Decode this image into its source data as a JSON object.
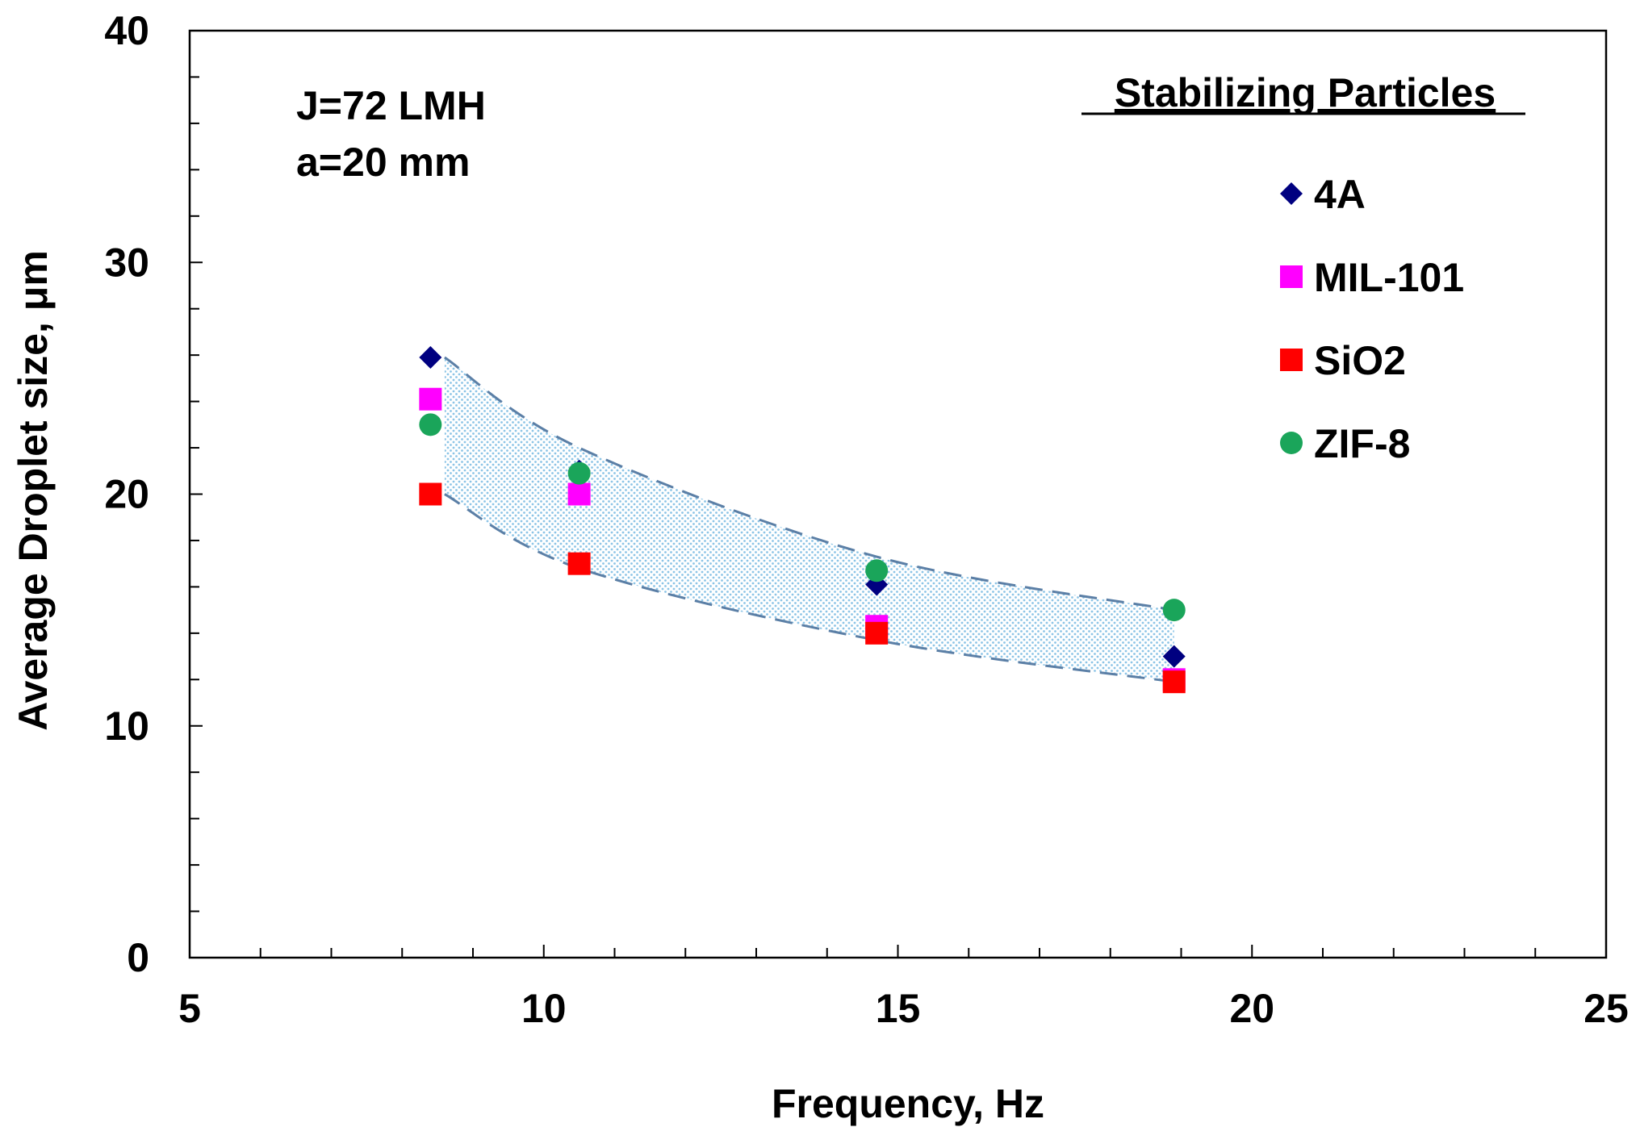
{
  "chart_data": {
    "type": "scatter",
    "title": "",
    "xlabel": "Frequency, Hz",
    "ylabel": "Average Droplet size, μm",
    "xlim": [
      5,
      25
    ],
    "ylim": [
      0,
      40
    ],
    "x_ticks": [
      "5",
      "10",
      "15",
      "20",
      "25"
    ],
    "y_ticks": [
      "0",
      "10",
      "20",
      "30",
      "40"
    ],
    "annotations": [
      "J=72 LMH",
      "a=20 mm"
    ],
    "legend_title": "Stabilizing Particles",
    "legend_position": "top-right",
    "series": [
      {
        "name": "4A",
        "marker": "diamond",
        "color": "#000080",
        "points": [
          [
            8.4,
            25.9
          ],
          [
            10.5,
            21.0
          ],
          [
            14.7,
            16.1
          ],
          [
            18.9,
            13.0
          ]
        ]
      },
      {
        "name": "MIL-101",
        "marker": "square",
        "color": "#ff00ff",
        "points": [
          [
            8.4,
            24.1
          ],
          [
            10.5,
            20.0
          ],
          [
            14.7,
            14.3
          ],
          [
            18.9,
            12.0
          ]
        ]
      },
      {
        "name": "SiO2",
        "marker": "square",
        "color": "#ff0000",
        "points": [
          [
            8.4,
            20.0
          ],
          [
            10.5,
            17.0
          ],
          [
            14.7,
            14.0
          ],
          [
            18.9,
            11.9
          ]
        ]
      },
      {
        "name": "ZIF-8",
        "marker": "circle",
        "color": "#1aa55a",
        "points": [
          [
            8.4,
            23.0
          ],
          [
            10.5,
            20.9
          ],
          [
            14.7,
            16.7
          ],
          [
            18.9,
            15.0
          ]
        ]
      }
    ],
    "band": {
      "upper": [
        [
          8.6,
          25.9
        ],
        [
          10.5,
          22.0
        ],
        [
          14.7,
          17.3
        ],
        [
          18.9,
          15.0
        ]
      ],
      "lower": [
        [
          8.6,
          20.0
        ],
        [
          10.5,
          16.8
        ],
        [
          14.7,
          13.7
        ],
        [
          18.9,
          11.9
        ]
      ],
      "line_color": "#5b7fa6",
      "fill_color": "#a9d3ee"
    }
  }
}
